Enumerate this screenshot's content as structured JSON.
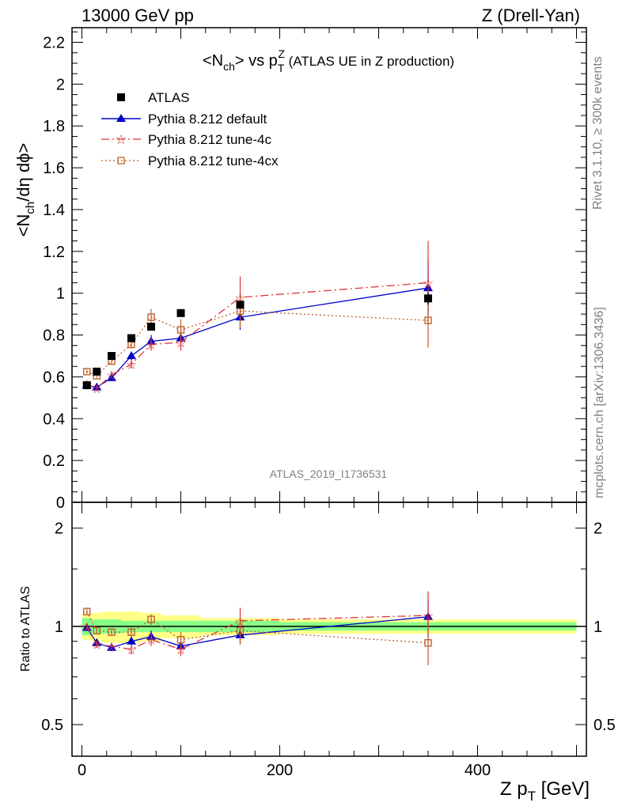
{
  "header": {
    "left": "13000 GeV pp",
    "right": "Z (Drell-Yan)"
  },
  "chart_data": {
    "type": "scatter",
    "title_parts": {
      "lt": "<N",
      "sub1": "ch",
      "mid": "> vs p",
      "sub2": "T",
      "sup": "Z",
      "tail": " (ATLAS UE in Z production)"
    },
    "ylabel_parts": {
      "a": "<N",
      "sub": "ch",
      "b": "/dη dϕ>"
    },
    "xlabel_parts": {
      "a": "Z p",
      "sub": "T",
      "b": " [GeV]"
    },
    "ratio_ylabel": "Ratio to ATLAS",
    "watermark": "ATLAS_2019_I1736531",
    "side_top": "Rivet 3.1.10, ≥ 300k events",
    "side_bottom": "mcplots.cern.ch [arXiv:1306.3436]",
    "xlim": [
      -10,
      510
    ],
    "ylim": [
      0,
      2.27
    ],
    "ratio_ylim": [
      0.4,
      2.4
    ],
    "x_ticks": [
      0,
      200,
      400
    ],
    "x_tick_labels": [
      "0",
      "200",
      "400"
    ],
    "y_ticks": [
      0,
      0.2,
      0.4,
      0.6,
      0.8,
      1,
      1.2,
      1.4,
      1.6,
      1.8,
      2,
      2.2
    ],
    "y_tick_labels": [
      "0",
      "0.2",
      "0.4",
      "0.6",
      "0.8",
      "1",
      "1.2",
      "1.4",
      "1.6",
      "1.8",
      "2",
      "2.2"
    ],
    "ratio_ticks": [
      0.5,
      1,
      2
    ],
    "ratio_tick_labels": [
      "0.5",
      "1",
      "2"
    ],
    "x": [
      5,
      15,
      30,
      50,
      70,
      100,
      160,
      350
    ],
    "data": {
      "name": "ATLAS",
      "values": [
        0.56,
        0.625,
        0.7,
        0.785,
        0.84,
        0.905,
        0.945,
        0.975
      ],
      "errors": [
        0.005,
        0.005,
        0.005,
        0.005,
        0.01,
        0.01,
        0.015,
        0.03
      ],
      "color": "#000000"
    },
    "band_edges": [
      0,
      10,
      20,
      40,
      60,
      80,
      120,
      200,
      500
    ],
    "band_green": [
      0.06,
      0.05,
      0.05,
      0.04,
      0.04,
      0.04,
      0.04,
      0.03
    ],
    "band_yellow": [
      0.09,
      0.1,
      0.11,
      0.11,
      0.1,
      0.08,
      0.06,
      0.05
    ],
    "series": [
      {
        "name": "Pythia 8.212 default",
        "color": "#0000cc",
        "dash": "",
        "marker": "triangle",
        "values": [
          0.56,
          0.55,
          0.595,
          0.7,
          0.77,
          0.785,
          0.885,
          1.025
        ],
        "errors": [
          0.01,
          0.01,
          0.015,
          0.02,
          0.03,
          0.04,
          0.06,
          0.13
        ],
        "ratio": [
          0.99,
          0.89,
          0.86,
          0.9,
          0.93,
          0.87,
          0.94,
          1.07
        ],
        "ratio_err": [
          0.02,
          0.02,
          0.02,
          0.03,
          0.04,
          0.04,
          0.06,
          0.14
        ]
      },
      {
        "name": "Pythia 8.212 tune-4c",
        "color": "#dd3333",
        "dash": "10,4,2,4",
        "marker": "star",
        "values": [
          0.565,
          0.545,
          0.61,
          0.66,
          0.755,
          0.765,
          0.98,
          1.05
        ],
        "errors": [
          0.01,
          0.01,
          0.015,
          0.02,
          0.03,
          0.04,
          0.1,
          0.2
        ],
        "ratio": [
          1.0,
          0.88,
          0.87,
          0.85,
          0.91,
          0.85,
          1.04,
          1.08
        ],
        "ratio_err": [
          0.02,
          0.02,
          0.02,
          0.03,
          0.04,
          0.04,
          0.1,
          0.2
        ]
      },
      {
        "name": "Pythia 8.212 tune-4cx",
        "color": "#c0602b",
        "dash": "2,3",
        "marker": "square-open",
        "values": [
          0.625,
          0.605,
          0.675,
          0.755,
          0.885,
          0.825,
          0.915,
          0.87
        ],
        "errors": [
          0.01,
          0.01,
          0.015,
          0.02,
          0.04,
          0.05,
          0.08,
          0.13
        ],
        "ratio": [
          1.11,
          0.97,
          0.96,
          0.96,
          1.05,
          0.91,
          0.97,
          0.89
        ],
        "ratio_err": [
          0.02,
          0.02,
          0.02,
          0.03,
          0.04,
          0.05,
          0.09,
          0.13
        ]
      }
    ]
  }
}
